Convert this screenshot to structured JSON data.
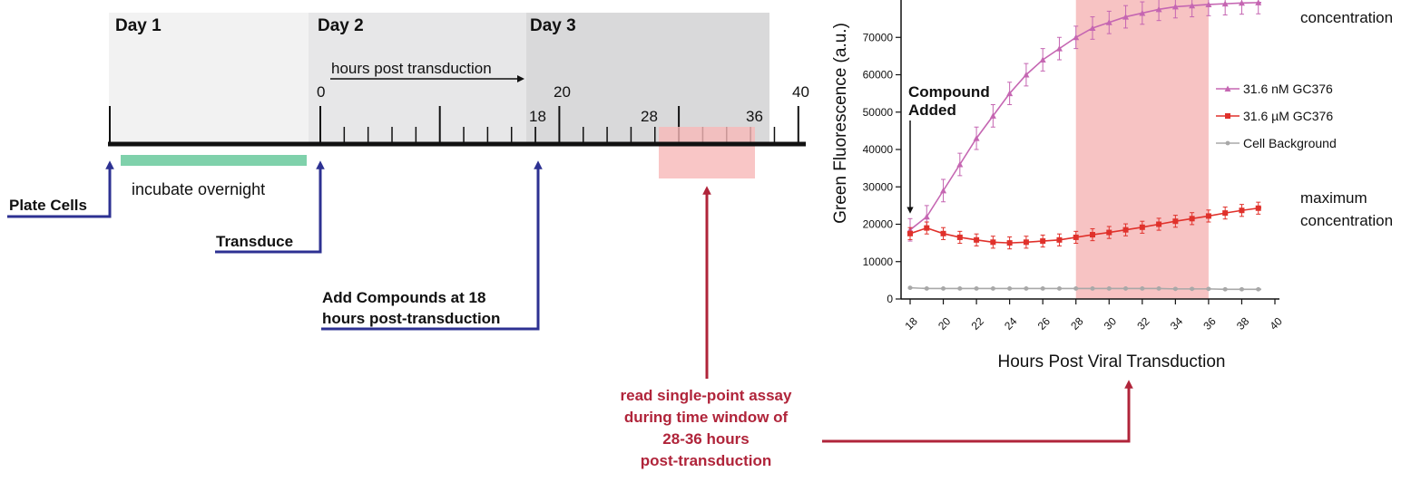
{
  "timeline": {
    "days": [
      "Day 1",
      "Day 2",
      "Day 3"
    ],
    "hours_caption": "hours post transduction",
    "hour_labels": [
      "0",
      "20",
      "40",
      "18",
      "28",
      "36"
    ],
    "incubate_label": "incubate overnight",
    "steps": {
      "plate": "Plate Cells",
      "transduce": "Transduce",
      "add_line1": "Add Compounds at 18",
      "add_line2": "hours post-transduction"
    },
    "read_note": [
      "read single-point assay",
      "during time window of",
      "28-36 hours",
      "post-transduction"
    ],
    "colors": {
      "day1": "#f2f2f2",
      "day2": "#e7e7e8",
      "day3": "#d9d9da",
      "incubate_bar": "#7fd1ab",
      "window": "#f7c3c3",
      "arrow_blue": "#2d3192",
      "arrow_red": "#b0243a"
    }
  },
  "chart_data": {
    "type": "line",
    "xlabel": "Hours Post Viral Transduction",
    "ylabel": "Green Fluorescence (a.u.)",
    "xlim": [
      17.5,
      40
    ],
    "ylim": [
      0,
      80000
    ],
    "x_ticks": [
      18,
      20,
      22,
      24,
      26,
      28,
      30,
      32,
      34,
      36,
      38,
      40
    ],
    "y_ticks": [
      0,
      10000,
      20000,
      30000,
      40000,
      50000,
      60000,
      70000
    ],
    "highlight_window": [
      28,
      36
    ],
    "annotation": [
      "Compound",
      "Added"
    ],
    "annotation_x": 18,
    "side_labels": {
      "top": "concentration",
      "bottom": [
        "maximum",
        "concentration"
      ]
    },
    "legend_placement": "right",
    "series": [
      {
        "name": "31.6 nM GC376",
        "marker": "triangle",
        "color": "#c566b2",
        "x": [
          18,
          19,
          20,
          21,
          22,
          23,
          24,
          25,
          26,
          27,
          28,
          29,
          30,
          31,
          32,
          33,
          34,
          35,
          36,
          37,
          38,
          39,
          40
        ],
        "values": [
          18500,
          22000,
          29000,
          36000,
          43000,
          49000,
          55000,
          60000,
          64000,
          67000,
          70000,
          72500,
          74000,
          75500,
          76500,
          77500,
          78200,
          78500,
          78800,
          79000,
          79200,
          79300,
          79400
        ],
        "error": 3000
      },
      {
        "name": "31.6 µM GC376",
        "marker": "square",
        "color": "#e0312b",
        "x": [
          18,
          19,
          20,
          21,
          22,
          23,
          24,
          25,
          26,
          27,
          28,
          29,
          30,
          31,
          32,
          33,
          34,
          35,
          36,
          37,
          38,
          39,
          40
        ],
        "values": [
          17500,
          19000,
          17500,
          16500,
          15800,
          15200,
          15000,
          15200,
          15500,
          15800,
          16500,
          17200,
          17800,
          18500,
          19200,
          20000,
          20800,
          21500,
          22200,
          23000,
          23700,
          24300,
          25000
        ],
        "error": 1600
      },
      {
        "name": "Cell Background",
        "marker": "circle",
        "color": "#a8a8a8",
        "x": [
          18,
          19,
          20,
          21,
          22,
          23,
          24,
          25,
          26,
          27,
          28,
          29,
          30,
          31,
          32,
          33,
          34,
          35,
          36,
          37,
          38,
          39,
          40
        ],
        "values": [
          3000,
          2800,
          2800,
          2800,
          2800,
          2800,
          2800,
          2800,
          2800,
          2800,
          2800,
          2800,
          2800,
          2800,
          2800,
          2800,
          2700,
          2700,
          2700,
          2600,
          2600,
          2600,
          2600
        ],
        "error": 150
      }
    ]
  }
}
